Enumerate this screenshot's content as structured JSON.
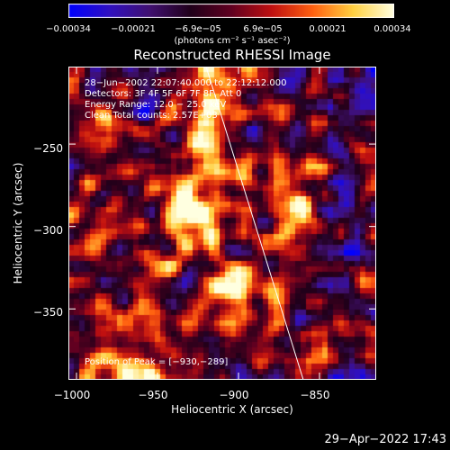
{
  "colorbar": {
    "ticks": [
      "−0.00034",
      "−0.00021",
      "−6.9e−05",
      "6.9e−05",
      "0.00021",
      "0.00034"
    ],
    "unit": "(photons cm⁻² s⁻¹ asec⁻²)",
    "colors": [
      "#0000ff",
      "#3010c0",
      "#401070",
      "#20001a",
      "#600020",
      "#c01010",
      "#ff6010",
      "#ffd040",
      "#ffffe0"
    ]
  },
  "title": "Reconstructed RHESSI Image",
  "annotations": {
    "time": "28−Jun−2002 22:07:40.000 to 22:12:12.000",
    "detectors": "Detectors: 3F 4F 5F 6F 7F 8F, Att 0",
    "energy": "Energy Range: 12.0 − 25.0 keV",
    "clean": "Clean     Total counts: 2.57E+03"
  },
  "peak": "Position of Peak = [−930,−289]",
  "axes": {
    "xlabel": "Heliocentric X (arcsec)",
    "ylabel": "Heliocentric Y (arcsec)",
    "xticks": [
      "−1000",
      "−950",
      "−900",
      "−850"
    ],
    "yticks": [
      "−250",
      "−300",
      "−350"
    ],
    "xlim": [
      -1005,
      -815
    ],
    "ylim": [
      -393,
      -203
    ],
    "xtick_values": [
      -1000,
      -950,
      -900,
      -850
    ],
    "ytick_values": [
      -250,
      -300,
      -350
    ]
  },
  "chart_data": {
    "type": "heatmap",
    "peak_position": [
      -930,
      -289
    ],
    "limb_line": [
      [
        -920,
        -203
      ],
      [
        -860,
        -393
      ]
    ]
  },
  "timestamp": "29−Apr−2022 17:43"
}
